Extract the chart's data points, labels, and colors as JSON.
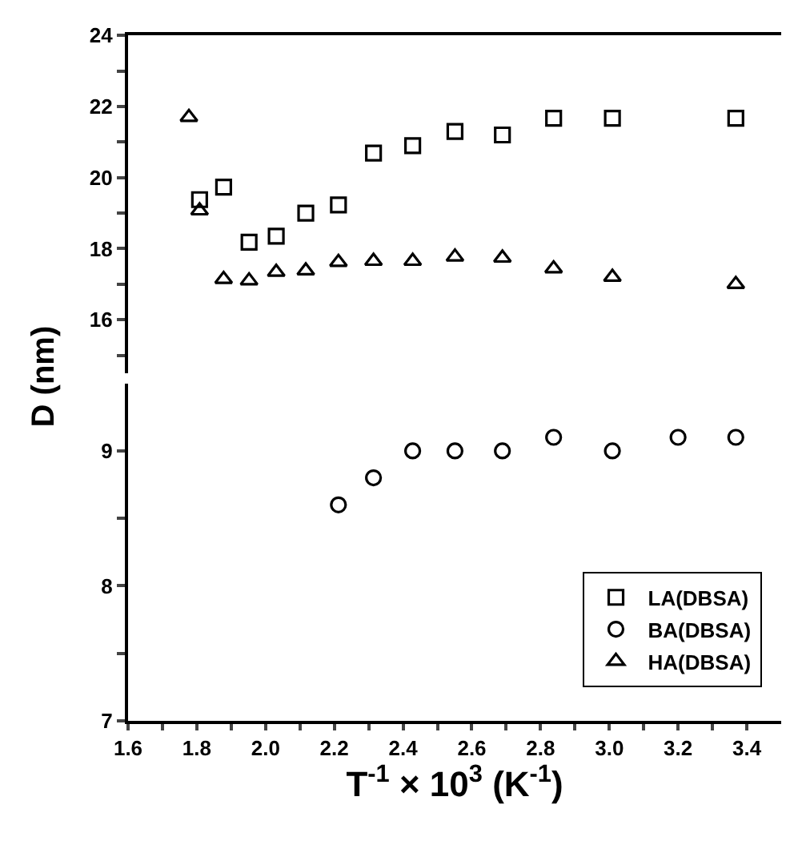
{
  "chart_data": [
    {
      "type": "scatter",
      "ylabel": "D (nm)",
      "xlim": [
        1.6,
        3.5
      ],
      "ylim": [
        14.5,
        24
      ],
      "yticks": [
        {
          "value": 15,
          "label": null
        },
        16,
        {
          "value": 17,
          "label": null
        },
        18,
        {
          "value": 19,
          "label": null
        },
        20,
        {
          "value": 21,
          "label": null
        },
        22,
        {
          "value": 23,
          "label": null
        },
        24
      ],
      "tick_labels": "y",
      "legend": "bottom right",
      "series": [
        {
          "name": "LA(DBSA)",
          "color": "#000000",
          "marker": "square",
          "x": [
            1.808,
            1.878,
            1.952,
            2.031,
            2.117,
            2.212,
            2.314,
            2.428,
            2.551,
            2.689,
            2.838,
            3.009,
            3.368
          ],
          "values": [
            19.38,
            19.73,
            18.18,
            18.35,
            19.0,
            19.23,
            20.69,
            20.9,
            21.3,
            21.2,
            21.67,
            21.67,
            21.67
          ]
        },
        {
          "name": "HA(DBSA)",
          "color": "#000000",
          "marker": "triangle",
          "x": [
            1.777,
            1.808,
            1.878,
            1.952,
            2.031,
            2.117,
            2.212,
            2.314,
            2.428,
            2.551,
            2.689,
            2.838,
            3.009,
            3.368
          ],
          "values": [
            21.7,
            19.07,
            17.14,
            17.1,
            17.34,
            17.38,
            17.62,
            17.65,
            17.65,
            17.77,
            17.74,
            17.44,
            17.2,
            17.0
          ]
        }
      ]
    },
    {
      "type": "scatter",
      "xlabel": "T$^{-1}$ × 10$^{3}$ (K$^{-1}$)",
      "xlim": [
        1.6,
        3.5
      ],
      "xticks": [
        1.6,
        {
          "value": 1.7,
          "label": null
        },
        1.8,
        {
          "value": 1.9,
          "label": null
        },
        {
          "value": 2.0,
          "label": "2.0"
        },
        {
          "value": 2.1,
          "label": null
        },
        2.2,
        {
          "value": 2.3,
          "label": null
        },
        2.4,
        {
          "value": 2.5,
          "label": null
        },
        2.6,
        {
          "value": 2.7,
          "label": null
        },
        2.8,
        {
          "value": 2.9,
          "label": null
        },
        {
          "value": 3.0,
          "label": "3.0"
        },
        {
          "value": 3.1,
          "label": null
        },
        3.2,
        {
          "value": 3.3,
          "label": null
        },
        3.4
      ],
      "ylim": [
        7,
        9.5
      ],
      "yticks": [
        7,
        {
          "value": 7.5,
          "label": null
        },
        8,
        {
          "value": 8.5,
          "label": null
        },
        9
      ],
      "legend": "bottom right",
      "series": [
        {
          "name": "BA(DBSA)",
          "color": "#000000",
          "marker": "circle",
          "x": [
            2.212,
            2.314,
            2.428,
            2.551,
            2.689,
            2.838,
            3.009,
            3.2,
            3.368
          ],
          "values": [
            8.6,
            8.8,
            9.0,
            9.0,
            9.0,
            9.1,
            9.0,
            9.1,
            9.1
          ]
        }
      ]
    }
  ]
}
